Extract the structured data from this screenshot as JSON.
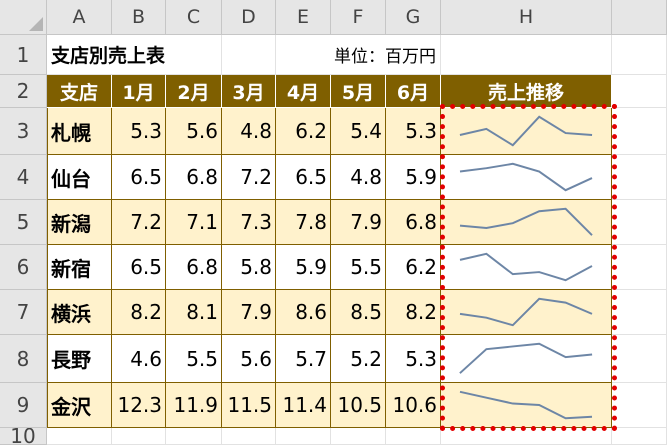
{
  "spreadsheet": {
    "columns": [
      "A",
      "B",
      "C",
      "D",
      "E",
      "F",
      "G",
      "H"
    ],
    "rows": [
      "1",
      "2",
      "3",
      "4",
      "5",
      "6",
      "7",
      "8",
      "9",
      "10"
    ],
    "title": "支店別売上表",
    "unit": "単位：百万円",
    "headers": [
      "支店",
      "1月",
      "2月",
      "3月",
      "4月",
      "5月",
      "6月",
      "売上推移"
    ],
    "data": [
      {
        "branch": "札幌",
        "values": [
          "5.3",
          "5.6",
          "4.8",
          "6.2",
          "5.4",
          "5.3"
        ]
      },
      {
        "branch": "仙台",
        "values": [
          "6.5",
          "6.8",
          "7.2",
          "6.5",
          "4.8",
          "5.9"
        ]
      },
      {
        "branch": "新潟",
        "values": [
          "7.2",
          "7.1",
          "7.3",
          "7.8",
          "7.9",
          "6.8"
        ]
      },
      {
        "branch": "新宿",
        "values": [
          "6.5",
          "6.8",
          "5.8",
          "5.9",
          "5.5",
          "6.2"
        ]
      },
      {
        "branch": "横浜",
        "values": [
          "8.2",
          "8.1",
          "7.9",
          "8.6",
          "8.5",
          "8.2"
        ]
      },
      {
        "branch": "長野",
        "values": [
          "4.6",
          "5.5",
          "5.6",
          "5.7",
          "5.2",
          "5.3"
        ]
      },
      {
        "branch": "金沢",
        "values": [
          "12.3",
          "11.9",
          "11.5",
          "11.4",
          "10.5",
          "10.6"
        ]
      }
    ],
    "sparkline_color": "#6d86a6",
    "header_fill": "#7f5f00",
    "band_fill": "#fff2cc",
    "selection_color": "#e30000"
  }
}
